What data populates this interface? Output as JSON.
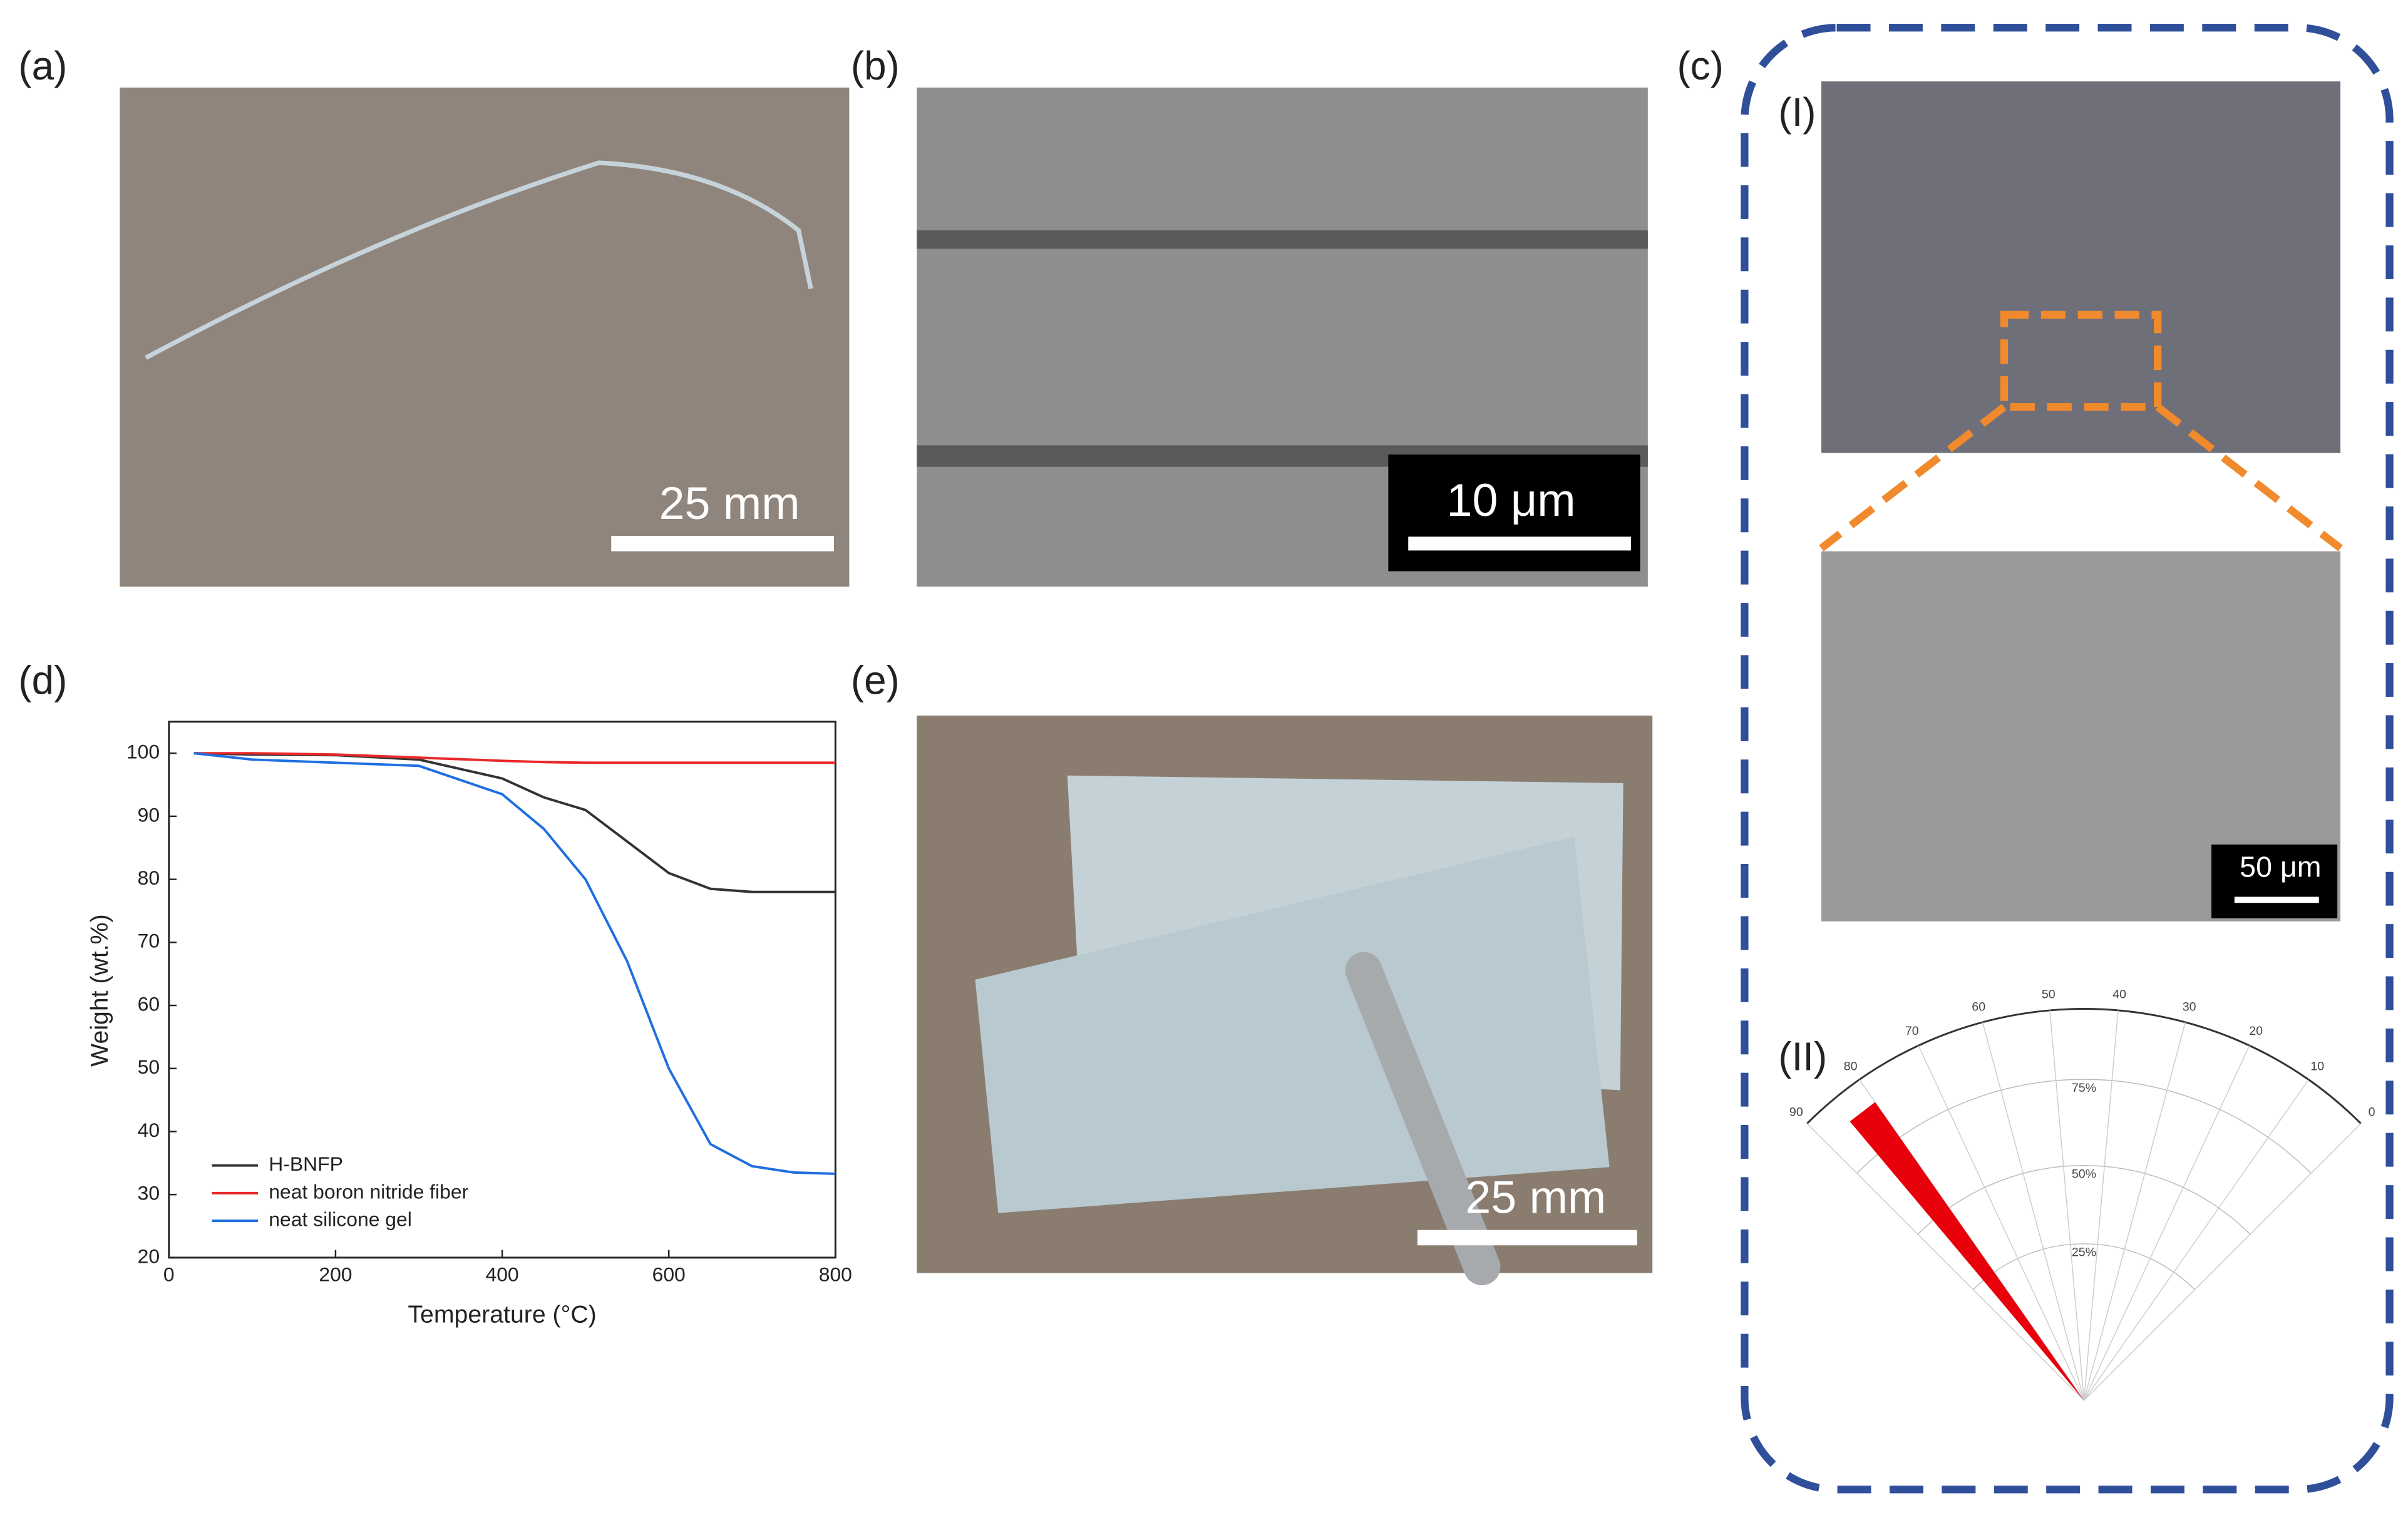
{
  "panels": {
    "labels": [
      "(a)",
      "(b)",
      "(c)",
      "(d)",
      "(e)",
      "(I)",
      "(II)"
    ],
    "scale_bars": {
      "a": "25 mm",
      "b": "10 μm",
      "c": "50 μm",
      "e": "25 mm"
    },
    "polar": {
      "angle_labels": [
        "90",
        "80",
        "70",
        "60",
        "50",
        "40",
        "30",
        "20",
        "10",
        "0"
      ],
      "radius_labels": [
        "75%",
        "50%",
        "25%"
      ]
    }
  },
  "chart_data": {
    "type": "line",
    "x_label": "Temperature (°C)",
    "y_label": "Weight (wt.%)",
    "x": [
      30,
      100,
      200,
      300,
      400,
      450,
      500,
      550,
      600,
      650,
      700,
      750,
      800
    ],
    "series": [
      {
        "name": "H-BNFP",
        "color": "#333333",
        "values": [
          100,
          99.8,
          99.7,
          99,
          96,
          93,
          91,
          86,
          81,
          78.5,
          78,
          78,
          78
        ]
      },
      {
        "name": "neat boron nitride fiber",
        "color": "#e8282a",
        "values": [
          100,
          100,
          99.8,
          99.3,
          98.8,
          98.6,
          98.5,
          98.5,
          98.5,
          98.5,
          98.5,
          98.5,
          98.5
        ]
      },
      {
        "name": "neat silicone gel",
        "color": "#1f6fe0",
        "values": [
          100,
          99,
          98.5,
          98,
          93.5,
          88,
          80,
          67,
          50,
          38,
          34.5,
          33.5,
          33.3
        ]
      }
    ],
    "xlim": [
      0,
      800
    ],
    "xticks": [
      0,
      200,
      400,
      600,
      800
    ],
    "ylim": [
      20,
      105
    ],
    "yticks": [
      20,
      30,
      40,
      50,
      60,
      70,
      80,
      90,
      100
    ]
  }
}
